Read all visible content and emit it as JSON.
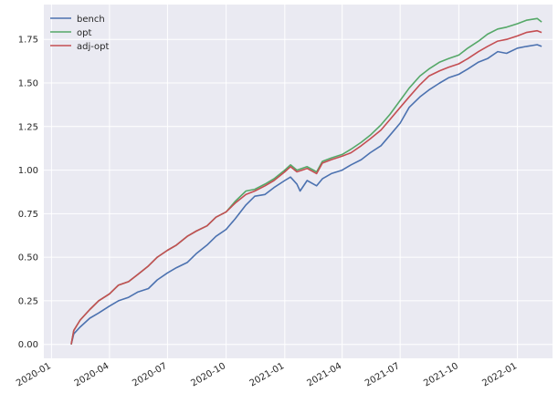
{
  "chart_data": {
    "type": "line",
    "title": "",
    "xlabel": "",
    "ylabel": "",
    "grid": true,
    "legend_placement": "top-left",
    "background_color": "#eaeaf2",
    "x_range": [
      "2019-12-20",
      "2022-02-25"
    ],
    "ylim": [
      -0.08,
      1.95
    ],
    "xticks": [
      {
        "date": "2020-01-01",
        "label": "2020-01"
      },
      {
        "date": "2020-04-01",
        "label": "2020-04"
      },
      {
        "date": "2020-07-01",
        "label": "2020-07"
      },
      {
        "date": "2020-10-01",
        "label": "2020-10"
      },
      {
        "date": "2021-01-01",
        "label": "2021-01"
      },
      {
        "date": "2021-04-01",
        "label": "2021-04"
      },
      {
        "date": "2021-07-01",
        "label": "2021-07"
      },
      {
        "date": "2021-10-01",
        "label": "2021-10"
      },
      {
        "date": "2022-01-01",
        "label": "2022-01"
      }
    ],
    "yticks": [
      {
        "value": 0.0,
        "label": "0.00"
      },
      {
        "value": 0.25,
        "label": "0.25"
      },
      {
        "value": 0.5,
        "label": "0.50"
      },
      {
        "value": 0.75,
        "label": "0.75"
      },
      {
        "value": 1.0,
        "label": "1.00"
      },
      {
        "value": 1.25,
        "label": "1.25"
      },
      {
        "value": 1.5,
        "label": "1.50"
      },
      {
        "value": 1.75,
        "label": "1.75"
      }
    ],
    "series": [
      {
        "name": "bench",
        "color": "#4c72b0",
        "points": [
          [
            "2020-02-01",
            0.0
          ],
          [
            "2020-02-05",
            0.06
          ],
          [
            "2020-02-15",
            0.1
          ],
          [
            "2020-03-01",
            0.15
          ],
          [
            "2020-03-15",
            0.18
          ],
          [
            "2020-04-01",
            0.22
          ],
          [
            "2020-04-15",
            0.25
          ],
          [
            "2020-05-01",
            0.27
          ],
          [
            "2020-05-15",
            0.3
          ],
          [
            "2020-06-01",
            0.32
          ],
          [
            "2020-06-15",
            0.37
          ],
          [
            "2020-07-01",
            0.41
          ],
          [
            "2020-07-15",
            0.44
          ],
          [
            "2020-08-01",
            0.47
          ],
          [
            "2020-08-15",
            0.52
          ],
          [
            "2020-09-01",
            0.57
          ],
          [
            "2020-09-15",
            0.62
          ],
          [
            "2020-10-01",
            0.66
          ],
          [
            "2020-10-15",
            0.72
          ],
          [
            "2020-11-01",
            0.8
          ],
          [
            "2020-11-15",
            0.85
          ],
          [
            "2020-12-01",
            0.86
          ],
          [
            "2020-12-15",
            0.9
          ],
          [
            "2021-01-01",
            0.94
          ],
          [
            "2021-01-10",
            0.96
          ],
          [
            "2021-01-20",
            0.92
          ],
          [
            "2021-01-25",
            0.88
          ],
          [
            "2021-02-05",
            0.94
          ],
          [
            "2021-02-20",
            0.91
          ],
          [
            "2021-03-01",
            0.95
          ],
          [
            "2021-03-15",
            0.98
          ],
          [
            "2021-04-01",
            1.0
          ],
          [
            "2021-04-15",
            1.03
          ],
          [
            "2021-05-01",
            1.06
          ],
          [
            "2021-05-15",
            1.1
          ],
          [
            "2021-06-01",
            1.14
          ],
          [
            "2021-06-15",
            1.2
          ],
          [
            "2021-07-01",
            1.27
          ],
          [
            "2021-07-15",
            1.36
          ],
          [
            "2021-08-01",
            1.42
          ],
          [
            "2021-08-15",
            1.46
          ],
          [
            "2021-09-01",
            1.5
          ],
          [
            "2021-09-15",
            1.53
          ],
          [
            "2021-10-01",
            1.55
          ],
          [
            "2021-10-15",
            1.58
          ],
          [
            "2021-11-01",
            1.62
          ],
          [
            "2021-11-15",
            1.64
          ],
          [
            "2021-12-01",
            1.68
          ],
          [
            "2021-12-15",
            1.67
          ],
          [
            "2022-01-01",
            1.7
          ],
          [
            "2022-01-15",
            1.71
          ],
          [
            "2022-02-01",
            1.72
          ],
          [
            "2022-02-08",
            1.71
          ]
        ]
      },
      {
        "name": "opt",
        "color": "#55a868",
        "points": [
          [
            "2020-02-01",
            0.0
          ],
          [
            "2020-02-05",
            0.08
          ],
          [
            "2020-02-15",
            0.14
          ],
          [
            "2020-03-01",
            0.2
          ],
          [
            "2020-03-15",
            0.25
          ],
          [
            "2020-04-01",
            0.29
          ],
          [
            "2020-04-15",
            0.34
          ],
          [
            "2020-05-01",
            0.36
          ],
          [
            "2020-05-15",
            0.4
          ],
          [
            "2020-06-01",
            0.45
          ],
          [
            "2020-06-15",
            0.5
          ],
          [
            "2020-07-01",
            0.54
          ],
          [
            "2020-07-15",
            0.57
          ],
          [
            "2020-08-01",
            0.62
          ],
          [
            "2020-08-15",
            0.65
          ],
          [
            "2020-09-01",
            0.68
          ],
          [
            "2020-09-15",
            0.73
          ],
          [
            "2020-10-01",
            0.76
          ],
          [
            "2020-10-15",
            0.82
          ],
          [
            "2020-11-01",
            0.88
          ],
          [
            "2020-11-15",
            0.89
          ],
          [
            "2020-12-01",
            0.92
          ],
          [
            "2020-12-15",
            0.95
          ],
          [
            "2021-01-01",
            1.0
          ],
          [
            "2021-01-10",
            1.03
          ],
          [
            "2021-01-20",
            1.0
          ],
          [
            "2021-02-05",
            1.02
          ],
          [
            "2021-02-20",
            0.99
          ],
          [
            "2021-03-01",
            1.05
          ],
          [
            "2021-03-15",
            1.07
          ],
          [
            "2021-04-01",
            1.09
          ],
          [
            "2021-04-15",
            1.12
          ],
          [
            "2021-05-01",
            1.16
          ],
          [
            "2021-05-15",
            1.2
          ],
          [
            "2021-06-01",
            1.26
          ],
          [
            "2021-06-15",
            1.32
          ],
          [
            "2021-07-01",
            1.4
          ],
          [
            "2021-07-15",
            1.47
          ],
          [
            "2021-08-01",
            1.54
          ],
          [
            "2021-08-15",
            1.58
          ],
          [
            "2021-09-01",
            1.62
          ],
          [
            "2021-09-15",
            1.64
          ],
          [
            "2021-10-01",
            1.66
          ],
          [
            "2021-10-15",
            1.7
          ],
          [
            "2021-11-01",
            1.74
          ],
          [
            "2021-11-15",
            1.78
          ],
          [
            "2021-12-01",
            1.81
          ],
          [
            "2021-12-15",
            1.82
          ],
          [
            "2022-01-01",
            1.84
          ],
          [
            "2022-01-15",
            1.86
          ],
          [
            "2022-02-01",
            1.87
          ],
          [
            "2022-02-08",
            1.85
          ]
        ]
      },
      {
        "name": "adj-opt",
        "color": "#c44e52",
        "points": [
          [
            "2020-02-01",
            0.0
          ],
          [
            "2020-02-05",
            0.08
          ],
          [
            "2020-02-15",
            0.14
          ],
          [
            "2020-03-01",
            0.2
          ],
          [
            "2020-03-15",
            0.25
          ],
          [
            "2020-04-01",
            0.29
          ],
          [
            "2020-04-15",
            0.34
          ],
          [
            "2020-05-01",
            0.36
          ],
          [
            "2020-05-15",
            0.4
          ],
          [
            "2020-06-01",
            0.45
          ],
          [
            "2020-06-15",
            0.5
          ],
          [
            "2020-07-01",
            0.54
          ],
          [
            "2020-07-15",
            0.57
          ],
          [
            "2020-08-01",
            0.62
          ],
          [
            "2020-08-15",
            0.65
          ],
          [
            "2020-09-01",
            0.68
          ],
          [
            "2020-09-15",
            0.73
          ],
          [
            "2020-10-01",
            0.76
          ],
          [
            "2020-10-15",
            0.81
          ],
          [
            "2020-11-01",
            0.86
          ],
          [
            "2020-11-15",
            0.88
          ],
          [
            "2020-12-01",
            0.91
          ],
          [
            "2020-12-15",
            0.94
          ],
          [
            "2021-01-01",
            0.99
          ],
          [
            "2021-01-10",
            1.02
          ],
          [
            "2021-01-20",
            0.99
          ],
          [
            "2021-02-05",
            1.01
          ],
          [
            "2021-02-20",
            0.98
          ],
          [
            "2021-03-01",
            1.04
          ],
          [
            "2021-03-15",
            1.06
          ],
          [
            "2021-04-01",
            1.08
          ],
          [
            "2021-04-15",
            1.1
          ],
          [
            "2021-05-01",
            1.14
          ],
          [
            "2021-05-15",
            1.18
          ],
          [
            "2021-06-01",
            1.23
          ],
          [
            "2021-06-15",
            1.29
          ],
          [
            "2021-07-01",
            1.36
          ],
          [
            "2021-07-15",
            1.42
          ],
          [
            "2021-08-01",
            1.49
          ],
          [
            "2021-08-15",
            1.54
          ],
          [
            "2021-09-01",
            1.57
          ],
          [
            "2021-09-15",
            1.59
          ],
          [
            "2021-10-01",
            1.61
          ],
          [
            "2021-10-15",
            1.64
          ],
          [
            "2021-11-01",
            1.68
          ],
          [
            "2021-11-15",
            1.71
          ],
          [
            "2021-12-01",
            1.74
          ],
          [
            "2021-12-15",
            1.75
          ],
          [
            "2022-01-01",
            1.77
          ],
          [
            "2022-01-15",
            1.79
          ],
          [
            "2022-02-01",
            1.8
          ],
          [
            "2022-02-08",
            1.79
          ]
        ]
      }
    ]
  }
}
